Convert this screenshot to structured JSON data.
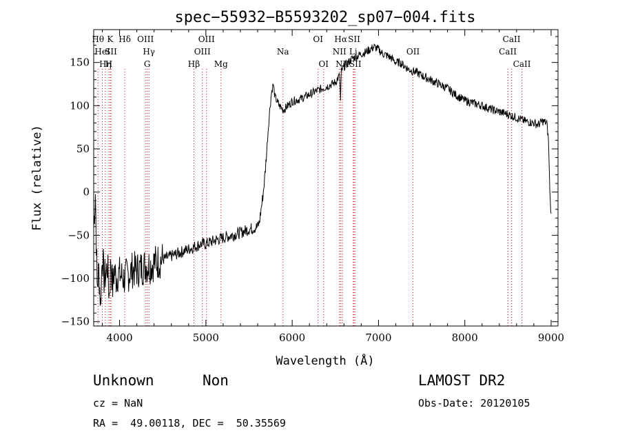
{
  "chart_data": {
    "type": "line",
    "title": "spec−55932−B5593202_sp07−004.fits",
    "xlabel": "Wavelength (Å)",
    "ylabel": "Flux (relative)",
    "xlim": [
      3700,
      9080
    ],
    "ylim": [
      -155,
      188
    ],
    "xticks": [
      4000,
      5000,
      6000,
      7000,
      8000,
      9000
    ],
    "yticks": [
      -150,
      -100,
      -50,
      0,
      50,
      100,
      150
    ],
    "ytick_labels": [
      "−150",
      "−100",
      "−50",
      "0",
      "50",
      "100",
      "150"
    ],
    "grid": false,
    "series": [
      {
        "x": [
          3700,
          3720,
          3740,
          3760,
          3780,
          3800,
          3820,
          3840,
          3860,
          3880,
          3900,
          3920,
          3940,
          3960,
          3980,
          4000,
          4050,
          4100,
          4150,
          4200,
          4250,
          4300,
          4350,
          4400,
          4450,
          4500,
          4550,
          4600,
          4650,
          4700,
          4750,
          4800,
          4850,
          4900,
          4950,
          5000,
          5100,
          5200,
          5300,
          5400,
          5500,
          5550,
          5600,
          5620,
          5640,
          5660,
          5680,
          5700,
          5720,
          5740,
          5760,
          5780,
          5800,
          5850,
          5900,
          5950,
          6000,
          6100,
          6200,
          6300,
          6400,
          6500,
          6550,
          6560,
          6570,
          6600,
          6650,
          6700,
          6750,
          6800,
          6850,
          6900,
          6950,
          7000,
          7050,
          7100,
          7150,
          7200,
          7250,
          7300,
          7350,
          7400,
          7450,
          7500,
          7600,
          7700,
          7800,
          7900,
          8000,
          8100,
          8200,
          8300,
          8400,
          8500,
          8600,
          8700,
          8800,
          8850,
          8900,
          8950,
          8970,
          8980,
          8990,
          9000
        ],
        "y": [
          -40,
          0,
          -110,
          -90,
          -130,
          -70,
          -100,
          -95,
          -85,
          -120,
          -80,
          -110,
          -90,
          -100,
          -95,
          -95,
          -100,
          -95,
          -90,
          -90,
          -88,
          -85,
          -85,
          -82,
          -80,
          -78,
          -76,
          -74,
          -72,
          -70,
          -68,
          -66,
          -64,
          -62,
          -60,
          -60,
          -56,
          -53,
          -50,
          -47,
          -43,
          -42,
          -40,
          -35,
          -20,
          -5,
          15,
          40,
          70,
          95,
          115,
          125,
          110,
          100,
          95,
          100,
          105,
          108,
          113,
          118,
          122,
          127,
          135,
          105,
          140,
          145,
          150,
          155,
          157,
          160,
          162,
          165,
          168,
          165,
          160,
          158,
          155,
          150,
          150,
          146,
          142,
          140,
          138,
          135,
          130,
          125,
          120,
          112,
          106,
          103,
          100,
          96,
          93,
          90,
          86,
          82,
          80,
          78,
          82,
          80,
          60,
          20,
          -10,
          -25
        ]
      }
    ],
    "line_markers": [
      {
        "x": 3750,
        "label": "Hθ",
        "row": 0
      },
      {
        "x": 3800,
        "label": "HeI",
        "row": 1
      },
      {
        "x": 3835,
        "label": "Hη",
        "row": 2
      },
      {
        "x": 3875,
        "label": "H",
        "row": 2
      },
      {
        "x": 3890,
        "label": "K",
        "row": 0
      },
      {
        "x": 3900,
        "label": "SII",
        "row": 1
      },
      {
        "x": 4060,
        "label": "Hδ",
        "row": 0
      },
      {
        "x": 4300,
        "label": "OIII",
        "row": 0
      },
      {
        "x": 4340,
        "label": "Hγ",
        "row": 1
      },
      {
        "x": 4320,
        "label": "G",
        "row": 2
      },
      {
        "x": 4861,
        "label": "Hβ",
        "row": 2
      },
      {
        "x": 4959,
        "label": "OIII",
        "row": 1
      },
      {
        "x": 5007,
        "label": "OIII",
        "row": 0
      },
      {
        "x": 5175,
        "label": "Mg",
        "row": 2
      },
      {
        "x": 5893,
        "label": "Na",
        "row": 1
      },
      {
        "x": 6300,
        "label": "OI",
        "row": 0
      },
      {
        "x": 6364,
        "label": "OI",
        "row": 2
      },
      {
        "x": 6548,
        "label": "NII",
        "row": 1
      },
      {
        "x": 6563,
        "label": "Hα",
        "row": 0
      },
      {
        "x": 6583,
        "label": "NII",
        "row": 2
      },
      {
        "x": 6708,
        "label": "Li",
        "row": 1
      },
      {
        "x": 6717,
        "label": "SII",
        "row": 0
      },
      {
        "x": 6731,
        "label": "SII",
        "row": 2
      },
      {
        "x": 7400,
        "label": "OII",
        "row": 1
      },
      {
        "x": 8498,
        "label": "CaII",
        "row": 1
      },
      {
        "x": 8542,
        "label": "CaII",
        "row": 0
      },
      {
        "x": 8662,
        "label": "CaII",
        "row": 2
      }
    ]
  },
  "info": {
    "class": "Unknown",
    "subclass": "Non",
    "survey": "LAMOST DR2",
    "cz": "cz = NaN",
    "obsdate": "Obs-Date: 20120105",
    "radec": "RA =  49.00118, DEC =  50.35569"
  }
}
